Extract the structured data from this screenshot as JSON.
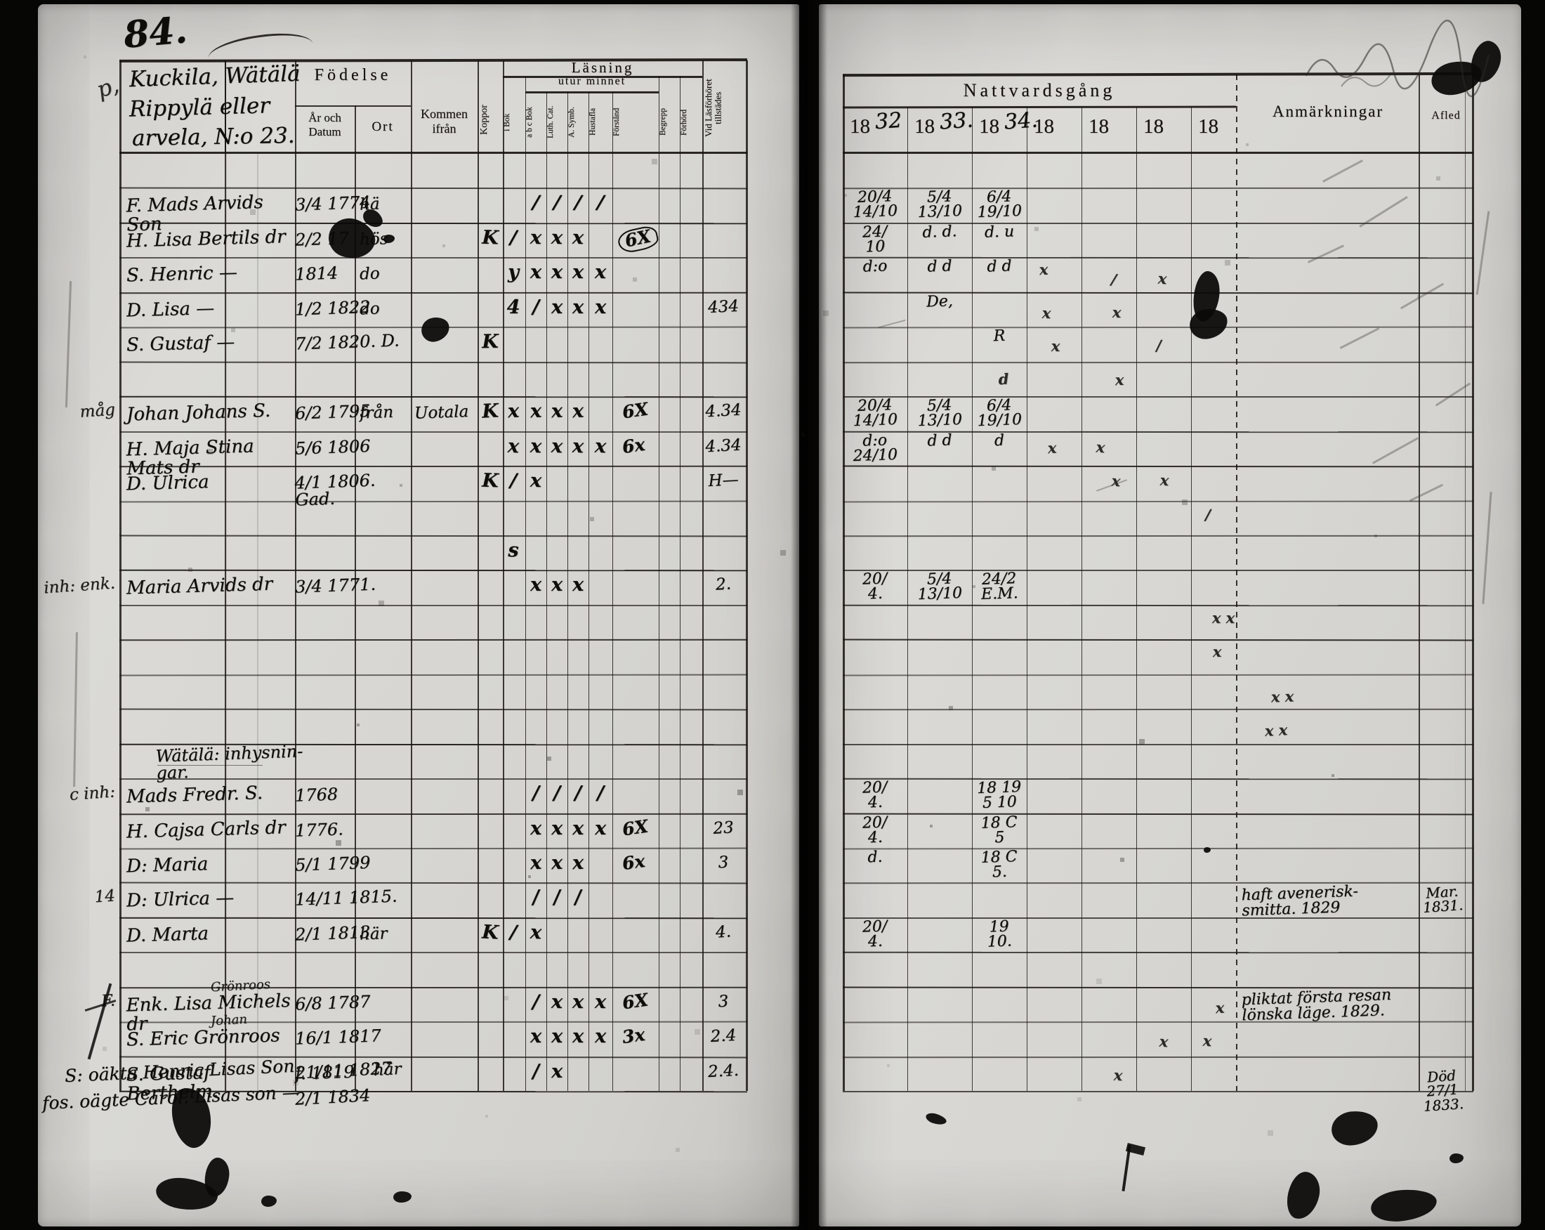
{
  "scan": {
    "page_number": "84.",
    "margin_note_top": "p,"
  },
  "left": {
    "title": {
      "l1": "Kuckila, Wätälä",
      "l2": "Rippylä     eller",
      "l3": "arvela,     N:o 23."
    },
    "header": {
      "fodelse": "Födelse",
      "ar_och_datum": "År och\nDatum",
      "ort": "Ort",
      "kommen": "Kommen\nifrån",
      "koppor": "Koppor",
      "lasning": "Läsning",
      "utur_minnet": "utur minnet",
      "subcols": [
        "i Bok",
        "a b c Bok",
        "Luth. Cat.",
        "A. Symb.",
        "Hustafla",
        "Förstånd",
        "Begrepp",
        "Förhörd"
      ],
      "vid": "Vid Läsförhöret tillstädes"
    },
    "rows": [
      null,
      {
        "name": "F. Mads Arvids Son",
        "date": "3/4 1774",
        "ort": "hä",
        "marks": [
          "",
          "",
          "/",
          "/",
          "/",
          "/"
        ]
      },
      {
        "name": "H. Lisa Bertils dr",
        "date": "2/2 17",
        "ort": "hös",
        "marks": [
          "K",
          "/",
          "x",
          "x",
          "x",
          ""
        ],
        "grade": "6X",
        "circ": true
      },
      {
        "name": "S. Henric —",
        "date": "1814",
        "ort": "do",
        "marks": [
          "",
          "y",
          "x",
          "x",
          "x",
          "x"
        ]
      },
      {
        "name": "D. Lisa —",
        "date": "1/2 1822",
        "ort": "do",
        "marks": [
          "",
          "4",
          "/",
          "x",
          "x",
          "x"
        ],
        "vid": "434"
      },
      {
        "name": "S. Gustaf —",
        "date": "7/2 1820. D.",
        "marks": [
          "K",
          "",
          "",
          "",
          "",
          ""
        ]
      },
      null,
      {
        "m": "måg",
        "name": "Johan Johans S.",
        "date": "6/2 1795",
        "ort": "från",
        "kommen": "Uotala",
        "marks": [
          "K",
          "x",
          "x",
          "x",
          "x",
          ""
        ],
        "grade": "6X",
        "vid": "4.34"
      },
      {
        "name": "H. Maja Stina Mats dr",
        "date": "5/6 1806",
        "marks": [
          "",
          "x",
          "x",
          "x",
          "x",
          "x"
        ],
        "grade": "6x",
        "vid": "4.34"
      },
      {
        "name": "D. Ulrica",
        "date": "4/1 1806. Gad.",
        "marks": [
          "K",
          "/",
          "x",
          "",
          "",
          ""
        ],
        "vid": "H—"
      },
      null,
      {
        "marks": [
          "",
          "s",
          "",
          "",
          "",
          ""
        ]
      },
      {
        "m": "inh: enk.",
        "name": "Maria Arvids dr",
        "date": "3/4 1771.",
        "marks": [
          "",
          "",
          "x",
          "x",
          "x",
          ""
        ],
        "vid": "2."
      },
      null,
      null,
      null,
      null,
      {
        "section": "Wätälä:  inhysnin-\ngar."
      },
      {
        "m": "c inh:",
        "name": "Mads Fredr. S.",
        "date": "1768",
        "marks": [
          "",
          "",
          "/",
          "/",
          "/",
          "/"
        ]
      },
      {
        "name": "H. Cajsa Carls dr",
        "date": "1776.",
        "marks": [
          "",
          "",
          "x",
          "x",
          "x",
          "x"
        ],
        "grade": "6X",
        "vid": "23"
      },
      {
        "name": "D: Maria",
        "date": "5/1 1799",
        "marks": [
          "",
          "",
          "x",
          "x",
          "x",
          ""
        ],
        "grade": "6x",
        "vid": "3"
      },
      {
        "m": "14",
        "name": "D: Ulrica —",
        "date": "14/11 1815.",
        "marks": [
          "",
          "",
          "/",
          "/",
          "/",
          ""
        ]
      },
      {
        "name": "D. Marta",
        "date": "2/1 1813",
        "ort": "här",
        "marks": [
          "K",
          "/",
          "x",
          "",
          "",
          ""
        ],
        "vid": "4."
      },
      null,
      {
        "m": "F.",
        "over": "Grönroos",
        "name": "Enk. Lisa Michels dr",
        "date": "6/8 1787",
        "marks": [
          "",
          "",
          "/",
          "x",
          "x",
          "x"
        ],
        "grade": "6X",
        "vid": "3"
      },
      {
        "over": "Johan",
        "name": "S. Eric Grönroos",
        "date": "16/1 1817",
        "marks": [
          "",
          "",
          "x",
          "x",
          "x",
          "x"
        ],
        "grade": "3x",
        "vid": "2.4"
      },
      {
        "name": "S. Gustaf Berthelm.",
        "date": "f. 1819",
        "marks": [
          "",
          "",
          "/",
          "x",
          "",
          ""
        ],
        "vid": "2.4."
      }
    ],
    "overflow": [
      {
        "text": "S: oäkta Henric Lisas Son",
        "date": "21/11 1827",
        "ort": "här"
      },
      {
        "text": "fos. oägte Carol. Lisas son —",
        "date": "2/1 1834",
        "ort": ""
      }
    ]
  },
  "right": {
    "header": {
      "title": "Nattvardsgång",
      "anm": "Anmärkningar",
      "afled": "Afled",
      "years": [
        {
          "p": "18",
          "w": "32"
        },
        {
          "p": "18",
          "w": "33."
        },
        {
          "p": "18",
          "w": "34."
        },
        {
          "p": "18",
          "w": ""
        },
        {
          "p": "18",
          "w": ""
        },
        {
          "p": "18",
          "w": ""
        },
        {
          "p": "18",
          "w": ""
        }
      ]
    },
    "rows": [
      null,
      {
        "y1832": "20/4\n14/10",
        "y1833": "5/4\n13/10",
        "y1834": "6/4\n19/10"
      },
      {
        "y1832": "24/\n10",
        "y1833": "d. d.",
        "y1834": "d. u"
      },
      {
        "y1832": "d:o",
        "y1833": "d d",
        "y1834": "d d"
      },
      {
        "y1833": "De,"
      },
      {
        "y1834": "R"
      },
      null,
      {
        "y1832": "20/4\n14/10",
        "y1833": "5/4\n13/10",
        "y1834": "6/4\n19/10"
      },
      {
        "y1832": "d:o\n24/10",
        "y1833": "d d",
        "y1834": "d"
      },
      null,
      null,
      null,
      {
        "y1832": "20/\n4.",
        "y1833": "5/4\n13/10",
        "y1834": "24/2\nE.M."
      },
      null,
      null,
      null,
      null,
      null,
      {
        "y1832": "20/\n4.",
        "y1834": "18 19\n5 10"
      },
      {
        "y1832": "20/\n4.",
        "y1834": "18 C\n5"
      },
      {
        "y1832": "d.",
        "y1834": "18 C\n5."
      },
      {
        "anm": "haft avenerisk-\nsmitta. 1829",
        "afled": "Mar.\n1831."
      },
      {
        "y1832": "20/\n4.",
        "y1834": "19\n10."
      },
      null,
      {
        "anm": "pliktat första resan\nlönska läge. 1829."
      },
      null,
      {
        "afled": "Död\n27/1 1833."
      }
    ],
    "strays": [
      {
        "r": 3,
        "c": "y18a",
        "t": "x"
      },
      {
        "r": 3,
        "c": "y18b",
        "t": "/"
      },
      {
        "r": 3,
        "c": "y18c",
        "t": "x"
      },
      {
        "r": 4,
        "c": "y18a",
        "t": "x"
      },
      {
        "r": 4,
        "c": "y18b",
        "t": "x"
      },
      {
        "r": 5,
        "c": "y18a",
        "t": "x"
      },
      {
        "r": 5,
        "c": "y18c",
        "t": "/"
      },
      {
        "r": 6,
        "c": "y18b",
        "t": "x"
      },
      {
        "r": 6,
        "c": "y1834",
        "t": "d"
      },
      {
        "r": 8,
        "c": "y18a",
        "t": "x"
      },
      {
        "r": 8,
        "c": "y18b",
        "t": "x"
      },
      {
        "r": 9,
        "c": "y18b",
        "t": "x"
      },
      {
        "r": 9,
        "c": "y18c",
        "t": "x"
      },
      {
        "r": 10,
        "c": "y18d",
        "t": "/"
      },
      {
        "r": 13,
        "c": "y18d",
        "t": "x x"
      },
      {
        "r": 14,
        "c": "y18d",
        "t": "x"
      },
      {
        "r": 15,
        "c": "anm",
        "t": "x  x"
      },
      {
        "r": 16,
        "c": "anm",
        "t": "x x"
      },
      {
        "r": 24,
        "c": "y18d",
        "t": "x"
      },
      {
        "r": 25,
        "c": "y18c",
        "t": "x"
      },
      {
        "r": 25,
        "c": "y18d",
        "t": "x"
      },
      {
        "r": 26,
        "c": "y18b",
        "t": "x"
      }
    ]
  }
}
